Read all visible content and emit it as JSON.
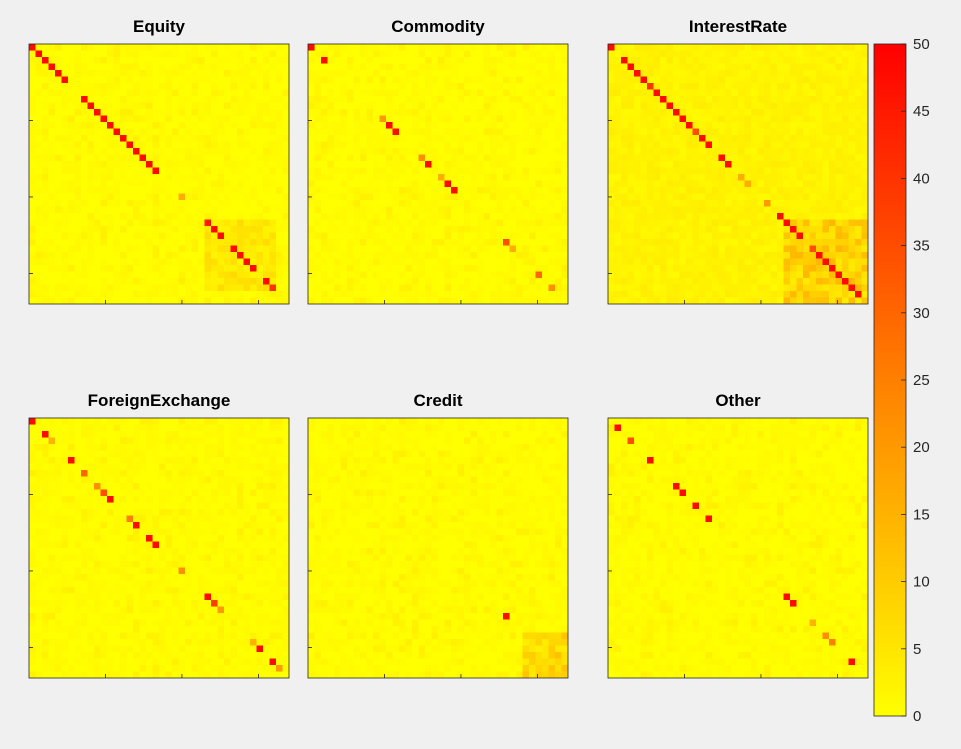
{
  "figure": {
    "background": "#f0f0f0",
    "colormap": [
      "#ffff00",
      "#ff0000"
    ]
  },
  "chart_data": [
    {
      "type": "heatmap",
      "title": "Equity",
      "grid_size": 40,
      "clim": [
        0,
        50
      ],
      "hot_cells": [
        [
          1,
          1,
          48
        ],
        [
          2,
          2,
          48
        ],
        [
          3,
          3,
          48
        ],
        [
          4,
          4,
          48
        ],
        [
          5,
          5,
          48
        ],
        [
          6,
          6,
          48
        ],
        [
          9,
          9,
          48
        ],
        [
          10,
          10,
          48
        ],
        [
          11,
          11,
          48
        ],
        [
          12,
          12,
          48
        ],
        [
          13,
          13,
          48
        ],
        [
          14,
          14,
          48
        ],
        [
          15,
          15,
          48
        ],
        [
          16,
          16,
          48
        ],
        [
          17,
          17,
          48
        ],
        [
          18,
          18,
          48
        ],
        [
          19,
          19,
          48
        ],
        [
          20,
          20,
          48
        ],
        [
          24,
          24,
          16
        ],
        [
          28,
          28,
          45
        ],
        [
          29,
          29,
          48
        ],
        [
          30,
          30,
          48
        ],
        [
          32,
          32,
          48
        ],
        [
          33,
          33,
          48
        ],
        [
          34,
          34,
          48
        ],
        [
          35,
          35,
          48
        ],
        [
          37,
          37,
          48
        ],
        [
          38,
          38,
          40
        ]
      ],
      "warm_blocks": [
        [
          [
            28,
            38
          ],
          [
            28,
            38
          ],
          6
        ]
      ]
    },
    {
      "type": "heatmap",
      "title": "Commodity",
      "grid_size": 40,
      "clim": [
        0,
        50
      ],
      "hot_cells": [
        [
          1,
          1,
          48
        ],
        [
          3,
          3,
          48
        ],
        [
          12,
          12,
          20
        ],
        [
          13,
          13,
          48
        ],
        [
          14,
          14,
          48
        ],
        [
          18,
          18,
          22
        ],
        [
          19,
          19,
          48
        ],
        [
          21,
          21,
          16
        ],
        [
          22,
          22,
          48
        ],
        [
          23,
          23,
          48
        ],
        [
          31,
          31,
          35
        ],
        [
          32,
          32,
          16
        ],
        [
          36,
          36,
          30
        ],
        [
          38,
          38,
          22
        ]
      ],
      "warm_blocks": []
    },
    {
      "type": "heatmap",
      "title": "InterestRate",
      "grid_size": 40,
      "clim": [
        0,
        50
      ],
      "hot_cells": [
        [
          1,
          1,
          48
        ],
        [
          3,
          3,
          48
        ],
        [
          4,
          4,
          48
        ],
        [
          5,
          5,
          48
        ],
        [
          6,
          6,
          48
        ],
        [
          7,
          7,
          40
        ],
        [
          8,
          8,
          48
        ],
        [
          9,
          9,
          48
        ],
        [
          10,
          10,
          48
        ],
        [
          11,
          11,
          48
        ],
        [
          12,
          12,
          48
        ],
        [
          13,
          13,
          48
        ],
        [
          14,
          14,
          35
        ],
        [
          15,
          15,
          48
        ],
        [
          16,
          16,
          48
        ],
        [
          18,
          18,
          48
        ],
        [
          19,
          19,
          48
        ],
        [
          21,
          21,
          16
        ],
        [
          22,
          22,
          16
        ],
        [
          25,
          25,
          20
        ],
        [
          27,
          27,
          48
        ],
        [
          28,
          28,
          48
        ],
        [
          29,
          29,
          48
        ],
        [
          30,
          30,
          48
        ],
        [
          32,
          32,
          35
        ],
        [
          33,
          33,
          48
        ],
        [
          34,
          34,
          48
        ],
        [
          35,
          35,
          48
        ],
        [
          36,
          36,
          48
        ],
        [
          37,
          37,
          48
        ],
        [
          38,
          38,
          48
        ],
        [
          39,
          39,
          48
        ]
      ],
      "warm_blocks": [
        [
          [
            1,
            40
          ],
          [
            1,
            40
          ],
          3
        ],
        [
          [
            28,
            40
          ],
          [
            28,
            40
          ],
          12
        ]
      ]
    },
    {
      "type": "heatmap",
      "title": "ForeignExchange",
      "grid_size": 40,
      "clim": [
        0,
        50
      ],
      "hot_cells": [
        [
          1,
          1,
          48
        ],
        [
          3,
          3,
          48
        ],
        [
          4,
          4,
          15
        ],
        [
          7,
          7,
          48
        ],
        [
          9,
          9,
          30
        ],
        [
          11,
          11,
          22
        ],
        [
          12,
          12,
          35
        ],
        [
          13,
          13,
          48
        ],
        [
          16,
          16,
          25
        ],
        [
          17,
          17,
          48
        ],
        [
          19,
          19,
          48
        ],
        [
          20,
          20,
          48
        ],
        [
          24,
          24,
          22
        ],
        [
          28,
          28,
          48
        ],
        [
          29,
          29,
          38
        ],
        [
          30,
          30,
          20
        ],
        [
          35,
          35,
          15
        ],
        [
          36,
          36,
          48
        ],
        [
          38,
          38,
          48
        ],
        [
          39,
          39,
          20
        ]
      ],
      "warm_blocks": []
    },
    {
      "type": "heatmap",
      "title": "Credit",
      "grid_size": 40,
      "clim": [
        0,
        50
      ],
      "hot_cells": [
        [
          31,
          31,
          48
        ]
      ],
      "warm_blocks": [
        [
          [
            34,
            40
          ],
          [
            34,
            40
          ],
          10
        ]
      ]
    },
    {
      "type": "heatmap",
      "title": "Other",
      "grid_size": 40,
      "clim": [
        0,
        50
      ],
      "hot_cells": [
        [
          2,
          2,
          48
        ],
        [
          4,
          4,
          35
        ],
        [
          7,
          7,
          48
        ],
        [
          11,
          11,
          48
        ],
        [
          12,
          12,
          48
        ],
        [
          14,
          14,
          48
        ],
        [
          16,
          16,
          48
        ],
        [
          28,
          28,
          48
        ],
        [
          29,
          29,
          48
        ],
        [
          32,
          32,
          15
        ],
        [
          34,
          34,
          22
        ],
        [
          35,
          35,
          25
        ],
        [
          38,
          38,
          48
        ]
      ],
      "warm_blocks": []
    }
  ],
  "colorbar": {
    "ticks": [
      "0",
      "5",
      "10",
      "15",
      "20",
      "25",
      "30",
      "35",
      "40",
      "45",
      "50"
    ]
  }
}
